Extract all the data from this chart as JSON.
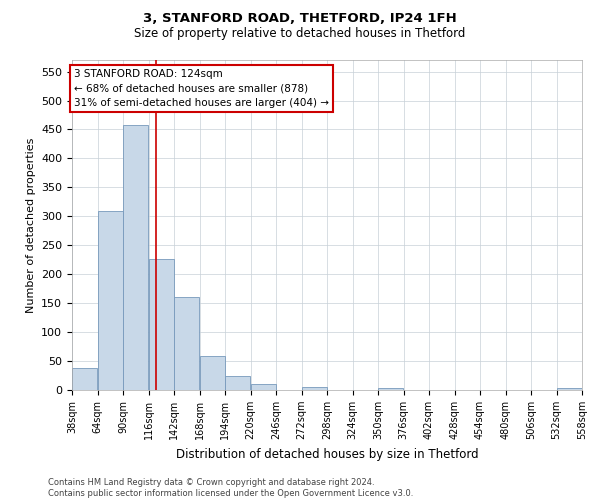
{
  "title1": "3, STANFORD ROAD, THETFORD, IP24 1FH",
  "title2": "Size of property relative to detached houses in Thetford",
  "xlabel": "Distribution of detached houses by size in Thetford",
  "ylabel": "Number of detached properties",
  "bar_color": "#c8d8e8",
  "bar_edge_color": "#7799bb",
  "bins": [
    38,
    64,
    90,
    116,
    142,
    168,
    194,
    220,
    246,
    272,
    298,
    324,
    350,
    376,
    402,
    428,
    454,
    480,
    506,
    532,
    558
  ],
  "values": [
    38,
    310,
    457,
    226,
    160,
    58,
    25,
    10,
    0,
    5,
    0,
    0,
    4,
    0,
    0,
    0,
    0,
    0,
    0,
    4
  ],
  "tick_labels": [
    "38sqm",
    "64sqm",
    "90sqm",
    "116sqm",
    "142sqm",
    "168sqm",
    "194sqm",
    "220sqm",
    "246sqm",
    "272sqm",
    "298sqm",
    "324sqm",
    "350sqm",
    "376sqm",
    "402sqm",
    "428sqm",
    "454sqm",
    "480sqm",
    "506sqm",
    "532sqm",
    "558sqm"
  ],
  "ylim": [
    0,
    570
  ],
  "yticks": [
    0,
    50,
    100,
    150,
    200,
    250,
    300,
    350,
    400,
    450,
    500,
    550
  ],
  "property_size": 124,
  "red_line_color": "#cc0000",
  "annotation_text_line1": "3 STANFORD ROAD: 124sqm",
  "annotation_text_line2": "← 68% of detached houses are smaller (878)",
  "annotation_text_line3": "31% of semi-detached houses are larger (404) →",
  "annotation_box_color": "#ffffff",
  "annotation_box_edge_color": "#cc0000",
  "footer_line1": "Contains HM Land Registry data © Crown copyright and database right 2024.",
  "footer_line2": "Contains public sector information licensed under the Open Government Licence v3.0.",
  "background_color": "#ffffff",
  "grid_color": "#c8d0d8"
}
